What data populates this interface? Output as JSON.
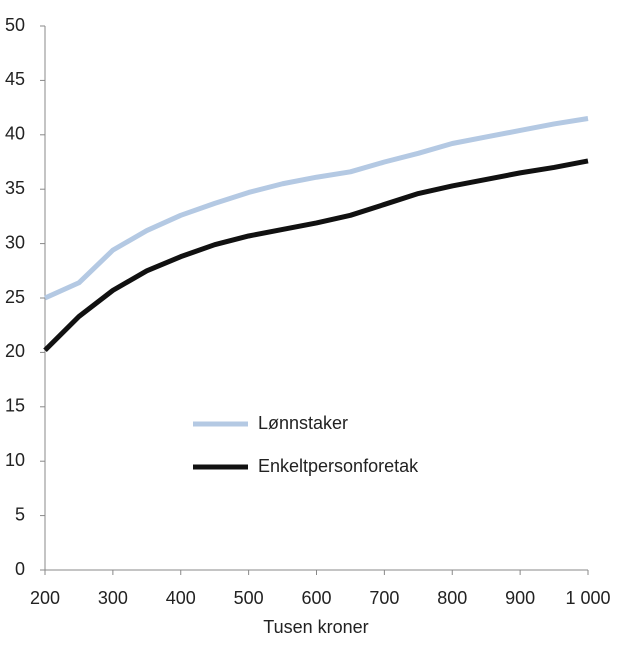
{
  "chart_data": {
    "type": "line",
    "x_label": "Tusen kroner",
    "x": [
      200,
      250,
      300,
      350,
      400,
      450,
      500,
      550,
      600,
      650,
      700,
      750,
      800,
      850,
      900,
      950,
      1000
    ],
    "series": [
      {
        "name": "Lønnstaker",
        "color": "#b4c9e3",
        "values": [
          25.0,
          26.4,
          29.4,
          31.2,
          32.6,
          33.7,
          34.7,
          35.5,
          36.1,
          36.6,
          37.5,
          38.3,
          39.2,
          39.8,
          40.4,
          41.0,
          41.5
        ]
      },
      {
        "name": "Enkeltpersonforetak",
        "color": "#111111",
        "values": [
          20.2,
          23.3,
          25.7,
          27.5,
          28.8,
          29.9,
          30.7,
          31.3,
          31.9,
          32.6,
          33.6,
          34.6,
          35.3,
          35.9,
          36.5,
          37.0,
          37.6
        ]
      }
    ],
    "xlim": [
      200,
      1000
    ],
    "xticks": [
      200,
      300,
      400,
      500,
      600,
      700,
      800,
      900,
      {
        "value": 1000,
        "label": "1 000"
      }
    ],
    "ylim": [
      0,
      50
    ],
    "yticks": [
      0,
      5,
      10,
      15,
      20,
      25,
      30,
      35,
      40,
      45,
      50
    ],
    "grid": false
  }
}
